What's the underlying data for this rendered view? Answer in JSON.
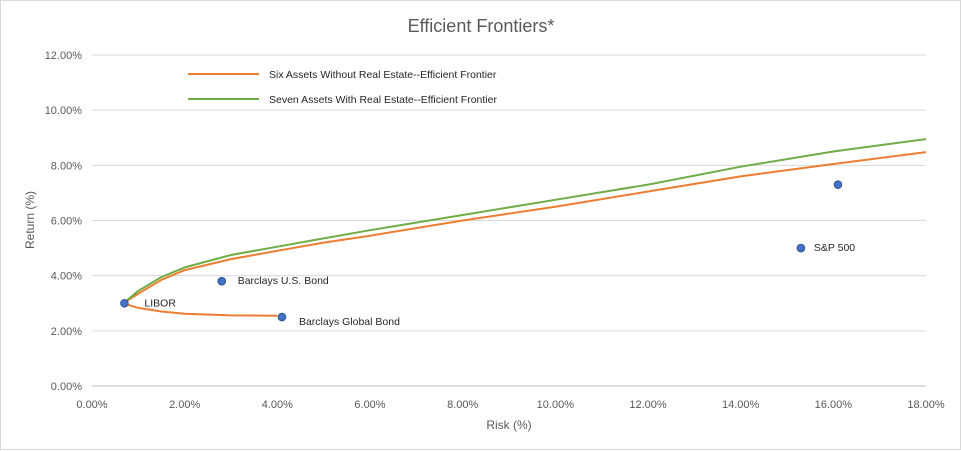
{
  "chart_data": {
    "type": "scatter",
    "title": "Efficient Frontiers*",
    "xlabel": "Risk (%)",
    "ylabel": "Return (%)",
    "xlim": [
      0,
      18
    ],
    "ylim": [
      0,
      12
    ],
    "x_ticks": [
      "0.00%",
      "2.00%",
      "4.00%",
      "6.00%",
      "8.00%",
      "10.00%",
      "12.00%",
      "14.00%",
      "16.00%",
      "18.00%"
    ],
    "y_ticks": [
      "0.00%",
      "2.00%",
      "4.00%",
      "6.00%",
      "8.00%",
      "10.00%",
      "12.00%"
    ],
    "grid": "horizontal",
    "legend_position": "top-left",
    "series": [
      {
        "name": "Six Assets Without Real Estate--Efficient Frontier",
        "kind": "line",
        "color": "#ed7d31",
        "points": [
          [
            4.0,
            2.55
          ],
          [
            3.0,
            2.56
          ],
          [
            2.0,
            2.62
          ],
          [
            1.5,
            2.7
          ],
          [
            1.0,
            2.83
          ],
          [
            0.8,
            2.93
          ],
          [
            0.7,
            3.0
          ],
          [
            0.75,
            3.08
          ],
          [
            1.0,
            3.35
          ],
          [
            1.5,
            3.85
          ],
          [
            2.0,
            4.2
          ],
          [
            3.0,
            4.6
          ],
          [
            4.0,
            4.9
          ],
          [
            5.0,
            5.2
          ],
          [
            6.0,
            5.45
          ],
          [
            8.0,
            6.0
          ],
          [
            10.0,
            6.5
          ],
          [
            12.0,
            7.05
          ],
          [
            14.0,
            7.6
          ],
          [
            16.0,
            8.05
          ],
          [
            18.0,
            8.48
          ]
        ]
      },
      {
        "name": "Seven Assets With Real Estate--Efficient Frontier",
        "kind": "line",
        "color": "#70ad47",
        "points": [
          [
            0.7,
            3.0
          ],
          [
            0.75,
            3.1
          ],
          [
            1.0,
            3.45
          ],
          [
            1.5,
            3.95
          ],
          [
            2.0,
            4.3
          ],
          [
            3.0,
            4.75
          ],
          [
            4.0,
            5.05
          ],
          [
            5.0,
            5.35
          ],
          [
            6.0,
            5.65
          ],
          [
            8.0,
            6.2
          ],
          [
            10.0,
            6.75
          ],
          [
            12.0,
            7.3
          ],
          [
            14.0,
            7.95
          ],
          [
            16.0,
            8.5
          ],
          [
            18.0,
            8.95
          ]
        ]
      }
    ],
    "points": [
      {
        "label": "LIBOR",
        "x": 0.7,
        "y": 3.0
      },
      {
        "label": "Barclays U.S. Bond",
        "x": 2.8,
        "y": 3.8
      },
      {
        "label": "Barclays Global Bond",
        "x": 4.1,
        "y": 2.5
      },
      {
        "label": "S&P 500",
        "x": 15.3,
        "y": 5.0
      },
      {
        "label": "",
        "x": 16.1,
        "y": 7.3
      }
    ],
    "point_color": "#4472c4"
  }
}
